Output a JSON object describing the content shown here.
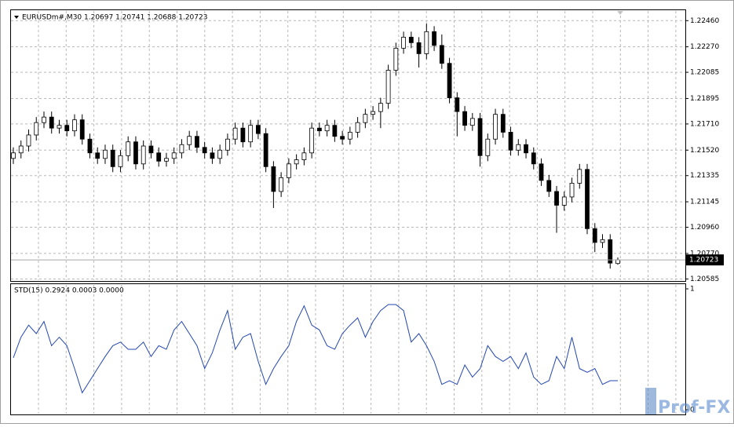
{
  "chart_data": [
    {
      "type": "candlestick",
      "title": "EURUSDm#,M30  1.20697 1.20741 1.20688 1.20723",
      "open": [
        1.2146,
        1.215,
        1.2155,
        1.2163,
        1.2172,
        1.2176,
        1.2168,
        1.217,
        1.2166,
        1.2174,
        1.216,
        1.215,
        1.2146,
        1.2152,
        1.214,
        1.2148,
        1.2158,
        1.2142,
        1.2155,
        1.215,
        1.2144,
        1.2146,
        1.215,
        1.2156,
        1.2162,
        1.2154,
        1.215,
        1.2146,
        1.2152,
        1.216,
        1.2168,
        1.2158,
        1.217,
        1.2164,
        1.214,
        1.2122,
        1.2132,
        1.2142,
        1.2145,
        1.215,
        1.2168,
        1.2166,
        1.217,
        1.2162,
        1.216,
        1.2165,
        1.2172,
        1.2178,
        1.218,
        1.2186,
        1.221,
        1.2226,
        1.2234,
        1.223,
        1.2222,
        1.2238,
        1.2228,
        1.2215,
        1.219,
        1.218,
        1.217,
        1.2175,
        1.2148,
        1.216,
        1.2178,
        1.2165,
        1.2152,
        1.2156,
        1.215,
        1.2142,
        1.213,
        1.2122,
        1.2112,
        1.2118,
        1.2128,
        1.2138,
        1.2095,
        1.2085,
        1.2087,
        1.20697
      ],
      "high": [
        1.2154,
        1.2159,
        1.2167,
        1.2176,
        1.218,
        1.218,
        1.2174,
        1.2174,
        1.2178,
        1.2178,
        1.2164,
        1.2154,
        1.2156,
        1.2156,
        1.2152,
        1.2162,
        1.2162,
        1.2159,
        1.2159,
        1.2154,
        1.215,
        1.2154,
        1.216,
        1.2166,
        1.2166,
        1.2158,
        1.2154,
        1.2156,
        1.2164,
        1.2172,
        1.2172,
        1.2174,
        1.2174,
        1.2168,
        1.2144,
        1.2136,
        1.2146,
        1.2149,
        1.2154,
        1.2172,
        1.2172,
        1.2174,
        1.2174,
        1.2166,
        1.2169,
        1.2176,
        1.2182,
        1.2184,
        1.219,
        1.2214,
        1.223,
        1.2238,
        1.2238,
        1.2234,
        1.2244,
        1.2242,
        1.2236,
        1.2219,
        1.2194,
        1.2184,
        1.2179,
        1.2179,
        1.2164,
        1.2182,
        1.2182,
        1.2169,
        1.216,
        1.216,
        1.2154,
        1.2146,
        1.2134,
        1.2126,
        1.2122,
        1.2132,
        1.2142,
        1.2142,
        1.2099,
        1.2091,
        1.2091,
        1.20741
      ],
      "low": [
        1.2142,
        1.2146,
        1.2151,
        1.2159,
        1.2168,
        1.2164,
        1.2164,
        1.2162,
        1.2162,
        1.2156,
        1.2146,
        1.2142,
        1.2142,
        1.2136,
        1.2136,
        1.2144,
        1.2138,
        1.2138,
        1.2146,
        1.214,
        1.214,
        1.2142,
        1.2146,
        1.2152,
        1.215,
        1.2146,
        1.2142,
        1.2142,
        1.2148,
        1.2156,
        1.2154,
        1.2154,
        1.216,
        1.2136,
        1.211,
        1.2118,
        1.2128,
        1.2138,
        1.2141,
        1.2146,
        1.2162,
        1.2162,
        1.2158,
        1.2156,
        1.2156,
        1.2161,
        1.2168,
        1.2174,
        1.2168,
        1.2182,
        1.2206,
        1.2222,
        1.2226,
        1.2212,
        1.2218,
        1.2224,
        1.2211,
        1.2186,
        1.2162,
        1.2166,
        1.2166,
        1.214,
        1.2144,
        1.2156,
        1.2161,
        1.2148,
        1.2148,
        1.2146,
        1.2138,
        1.2126,
        1.2118,
        1.2092,
        1.2108,
        1.2114,
        1.2124,
        1.2091,
        1.2078,
        1.2081,
        1.2066,
        1.20688
      ],
      "close": [
        1.215,
        1.2155,
        1.2163,
        1.2172,
        1.2176,
        1.2168,
        1.217,
        1.2166,
        1.2174,
        1.216,
        1.215,
        1.2146,
        1.2152,
        1.214,
        1.2148,
        1.2158,
        1.2142,
        1.2155,
        1.215,
        1.2144,
        1.2146,
        1.215,
        1.2156,
        1.2162,
        1.2154,
        1.215,
        1.2146,
        1.2152,
        1.216,
        1.2168,
        1.2158,
        1.217,
        1.2164,
        1.214,
        1.2122,
        1.2132,
        1.2142,
        1.2145,
        1.215,
        1.2168,
        1.2166,
        1.217,
        1.2162,
        1.216,
        1.2165,
        1.2172,
        1.2178,
        1.218,
        1.2186,
        1.221,
        1.2226,
        1.2234,
        1.223,
        1.2222,
        1.2238,
        1.2228,
        1.2215,
        1.219,
        1.218,
        1.217,
        1.2175,
        1.2148,
        1.216,
        1.2178,
        1.2165,
        1.2152,
        1.2156,
        1.215,
        1.2142,
        1.213,
        1.2122,
        1.2112,
        1.2118,
        1.2128,
        1.2138,
        1.2095,
        1.2085,
        1.2087,
        1.207,
        1.20723
      ],
      "ylim": [
        1.2057,
        1.2253
      ],
      "yticks": [
        {
          "value": 1.2246,
          "label": "1.22460"
        },
        {
          "value": 1.2227,
          "label": "1.22270"
        },
        {
          "value": 1.22085,
          "label": "1.22085"
        },
        {
          "value": 1.21895,
          "label": "1.21895"
        },
        {
          "value": 1.2171,
          "label": "1.21710"
        },
        {
          "value": 1.2152,
          "label": "1.21520"
        },
        {
          "value": 1.21335,
          "label": "1.21335"
        },
        {
          "value": 1.21145,
          "label": "1.21145"
        },
        {
          "value": 1.2096,
          "label": "1.20960"
        },
        {
          "value": 1.2077,
          "label": "1.20770"
        },
        {
          "value": 1.20585,
          "label": "1.20585"
        }
      ],
      "last_price": 1.20723,
      "grid": true
    },
    {
      "type": "line",
      "title": "STD(15) 0.2924 0.0003 0.0000",
      "color": "#2447b0",
      "values": [
        0.43,
        0.6,
        0.7,
        0.63,
        0.73,
        0.53,
        0.6,
        0.53,
        0.34,
        0.14,
        0.24,
        0.34,
        0.44,
        0.53,
        0.56,
        0.5,
        0.5,
        0.56,
        0.44,
        0.53,
        0.5,
        0.66,
        0.73,
        0.63,
        0.53,
        0.34,
        0.47,
        0.66,
        0.82,
        0.5,
        0.6,
        0.63,
        0.4,
        0.21,
        0.34,
        0.44,
        0.53,
        0.73,
        0.86,
        0.7,
        0.66,
        0.53,
        0.5,
        0.63,
        0.7,
        0.76,
        0.6,
        0.73,
        0.82,
        0.87,
        0.87,
        0.82,
        0.56,
        0.63,
        0.53,
        0.4,
        0.21,
        0.24,
        0.21,
        0.37,
        0.27,
        0.34,
        0.53,
        0.44,
        0.4,
        0.44,
        0.34,
        0.47,
        0.27,
        0.21,
        0.24,
        0.44,
        0.34,
        0.6,
        0.34,
        0.31,
        0.34,
        0.21,
        0.24,
        0.24
      ],
      "ylim": [
        0,
        1
      ],
      "yticks": [
        1,
        0
      ],
      "grid": true
    }
  ],
  "watermark": "Prof-FX"
}
